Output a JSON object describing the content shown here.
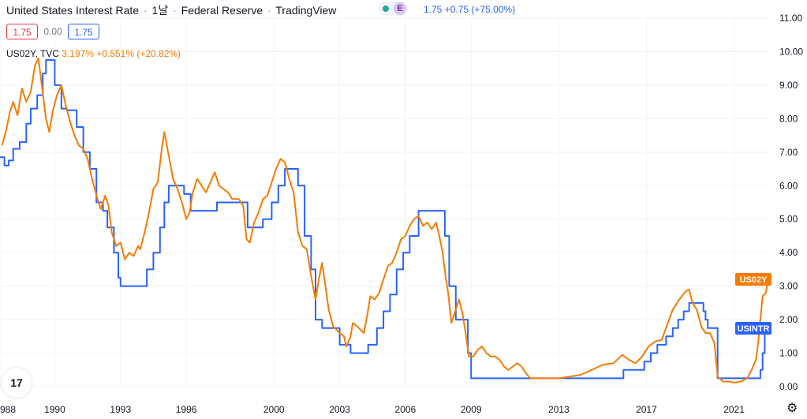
{
  "header": {
    "title": "United States Interest Rate",
    "interval": "1날",
    "source": "Federal Reserve",
    "platform": "TradingView",
    "badge": "E",
    "value_line": "1.75  +0.75 (+75.00%)"
  },
  "ohlc": {
    "open": "1.75",
    "mid": "0.00",
    "close": "1.75"
  },
  "overlay": {
    "name": "US02Y, TVC",
    "values": "3.197%  +0.551% (+20.82%)"
  },
  "logo": "17",
  "colors": {
    "rate": "#2962ff",
    "yield": "#f57c00",
    "grid": "#f0f3fa",
    "axis_text": "#131722"
  },
  "chart_data": {
    "type": "line",
    "y_ticks": [
      "11.00",
      "10.00",
      "9.00",
      "8.00",
      "7.00",
      "6.00",
      "5.00",
      "4.00",
      "3.00",
      "2.00",
      "1.00",
      "0.00"
    ],
    "x_ticks": [
      "988",
      "1990",
      "1993",
      "1996",
      "2000",
      "2003",
      "2006",
      "2009",
      "2013",
      "2017",
      "2021"
    ],
    "x_tick_years": [
      1987.5,
      1990,
      1993,
      1996,
      2000,
      2003,
      2006,
      2009,
      2013,
      2017,
      2021
    ],
    "xlim": [
      1987.5,
      2022.6
    ],
    "ylim": [
      0,
      11
    ],
    "series": [
      {
        "name": "USINTR",
        "label": "USINTR",
        "color": "#2962ff",
        "points": [
          [
            1987.5,
            6.85
          ],
          [
            1987.7,
            6.6
          ],
          [
            1987.9,
            6.75
          ],
          [
            1988.1,
            7.1
          ],
          [
            1988.4,
            7.3
          ],
          [
            1988.7,
            7.85
          ],
          [
            1988.9,
            8.3
          ],
          [
            1989.2,
            8.7
          ],
          [
            1989.45,
            9.35
          ],
          [
            1989.6,
            9.75
          ],
          [
            1989.8,
            9.75
          ],
          [
            1990.0,
            9.0
          ],
          [
            1990.3,
            8.3
          ],
          [
            1990.55,
            8.25
          ],
          [
            1990.85,
            8.25
          ],
          [
            1991.0,
            7.75
          ],
          [
            1991.3,
            7.0
          ],
          [
            1991.6,
            6.5
          ],
          [
            1991.9,
            5.5
          ],
          [
            1992.2,
            5.25
          ],
          [
            1992.4,
            4.75
          ],
          [
            1992.7,
            4.0
          ],
          [
            1992.9,
            3.25
          ],
          [
            1993.0,
            3.0
          ],
          [
            1993.5,
            3.0
          ],
          [
            1994.0,
            3.0
          ],
          [
            1994.2,
            3.5
          ],
          [
            1994.5,
            4.0
          ],
          [
            1994.8,
            4.75
          ],
          [
            1995.0,
            5.5
          ],
          [
            1995.2,
            6.0
          ],
          [
            1995.6,
            6.0
          ],
          [
            1995.9,
            5.75
          ],
          [
            1996.2,
            5.25
          ],
          [
            1996.8,
            5.25
          ],
          [
            1997.2,
            5.25
          ],
          [
            1997.4,
            5.5
          ],
          [
            1998.0,
            5.5
          ],
          [
            1998.6,
            5.5
          ],
          [
            1998.8,
            4.75
          ],
          [
            1999.2,
            4.75
          ],
          [
            1999.5,
            5.0
          ],
          [
            1999.9,
            5.5
          ],
          [
            2000.2,
            6.0
          ],
          [
            2000.5,
            6.5
          ],
          [
            2000.9,
            6.5
          ],
          [
            2001.1,
            6.0
          ],
          [
            2001.4,
            4.5
          ],
          [
            2001.7,
            3.5
          ],
          [
            2001.9,
            2.0
          ],
          [
            2002.2,
            1.75
          ],
          [
            2002.9,
            1.75
          ],
          [
            2003.0,
            1.25
          ],
          [
            2003.5,
            1.0
          ],
          [
            2004.0,
            1.0
          ],
          [
            2004.3,
            1.25
          ],
          [
            2004.7,
            1.75
          ],
          [
            2005.0,
            2.25
          ],
          [
            2005.3,
            2.75
          ],
          [
            2005.6,
            3.5
          ],
          [
            2005.9,
            4.0
          ],
          [
            2006.2,
            4.5
          ],
          [
            2006.6,
            5.25
          ],
          [
            2007.0,
            5.25
          ],
          [
            2007.6,
            5.25
          ],
          [
            2007.8,
            4.5
          ],
          [
            2008.0,
            3.0
          ],
          [
            2008.3,
            2.0
          ],
          [
            2008.6,
            2.0
          ],
          [
            2008.85,
            1.0
          ],
          [
            2009.0,
            0.25
          ],
          [
            2010.0,
            0.25
          ],
          [
            2012.0,
            0.25
          ],
          [
            2014.0,
            0.25
          ],
          [
            2015.5,
            0.25
          ],
          [
            2015.95,
            0.5
          ],
          [
            2016.9,
            0.75
          ],
          [
            2017.2,
            1.0
          ],
          [
            2017.5,
            1.25
          ],
          [
            2017.9,
            1.5
          ],
          [
            2018.2,
            1.75
          ],
          [
            2018.45,
            2.0
          ],
          [
            2018.7,
            2.25
          ],
          [
            2018.95,
            2.5
          ],
          [
            2019.5,
            2.5
          ],
          [
            2019.6,
            2.25
          ],
          [
            2019.7,
            2.0
          ],
          [
            2019.8,
            1.75
          ],
          [
            2020.2,
            1.75
          ],
          [
            2020.25,
            0.25
          ],
          [
            2021.0,
            0.25
          ],
          [
            2022.0,
            0.25
          ],
          [
            2022.2,
            0.5
          ],
          [
            2022.3,
            1.0
          ],
          [
            2022.4,
            1.75
          ]
        ]
      },
      {
        "name": "US02Y",
        "label": "US02Y",
        "color": "#f57c00",
        "points": [
          [
            1987.6,
            7.2
          ],
          [
            1987.8,
            7.7
          ],
          [
            1987.95,
            8.2
          ],
          [
            1988.1,
            8.5
          ],
          [
            1988.3,
            8.1
          ],
          [
            1988.5,
            8.9
          ],
          [
            1988.7,
            8.5
          ],
          [
            1988.9,
            8.8
          ],
          [
            1989.1,
            9.6
          ],
          [
            1989.25,
            9.8
          ],
          [
            1989.35,
            9.3
          ],
          [
            1989.5,
            8.5
          ],
          [
            1989.6,
            8.0
          ],
          [
            1989.75,
            7.6
          ],
          [
            1989.9,
            8.2
          ],
          [
            1990.1,
            8.7
          ],
          [
            1990.3,
            9.0
          ],
          [
            1990.5,
            8.4
          ],
          [
            1990.7,
            7.9
          ],
          [
            1990.9,
            7.5
          ],
          [
            1991.1,
            7.2
          ],
          [
            1991.3,
            7.1
          ],
          [
            1991.5,
            6.8
          ],
          [
            1991.7,
            6.2
          ],
          [
            1991.95,
            5.6
          ],
          [
            1992.1,
            5.3
          ],
          [
            1992.3,
            5.7
          ],
          [
            1992.45,
            5.4
          ],
          [
            1992.6,
            4.6
          ],
          [
            1992.8,
            4.2
          ],
          [
            1993.0,
            4.3
          ],
          [
            1993.2,
            3.8
          ],
          [
            1993.4,
            4.0
          ],
          [
            1993.6,
            3.9
          ],
          [
            1993.8,
            4.2
          ],
          [
            1993.9,
            4.1
          ],
          [
            1994.1,
            4.6
          ],
          [
            1994.3,
            5.2
          ],
          [
            1994.5,
            5.9
          ],
          [
            1994.7,
            6.1
          ],
          [
            1994.9,
            7.2
          ],
          [
            1995.0,
            7.6
          ],
          [
            1995.2,
            6.9
          ],
          [
            1995.4,
            6.2
          ],
          [
            1995.6,
            5.9
          ],
          [
            1995.8,
            5.5
          ],
          [
            1996.0,
            5.0
          ],
          [
            1996.15,
            5.2
          ],
          [
            1996.3,
            5.8
          ],
          [
            1996.5,
            6.2
          ],
          [
            1996.7,
            6.0
          ],
          [
            1996.9,
            5.8
          ],
          [
            1997.1,
            6.1
          ],
          [
            1997.3,
            6.4
          ],
          [
            1997.5,
            6.0
          ],
          [
            1997.7,
            5.9
          ],
          [
            1997.9,
            5.8
          ],
          [
            1998.1,
            5.6
          ],
          [
            1998.4,
            5.6
          ],
          [
            1998.6,
            5.4
          ],
          [
            1998.75,
            4.4
          ],
          [
            1998.9,
            4.3
          ],
          [
            1999.1,
            4.9
          ],
          [
            1999.3,
            5.2
          ],
          [
            1999.5,
            5.6
          ],
          [
            1999.7,
            5.7
          ],
          [
            1999.9,
            6.1
          ],
          [
            2000.1,
            6.5
          ],
          [
            2000.3,
            6.8
          ],
          [
            2000.5,
            6.7
          ],
          [
            2000.7,
            6.2
          ],
          [
            2000.9,
            5.8
          ],
          [
            2001.1,
            4.6
          ],
          [
            2001.3,
            4.2
          ],
          [
            2001.5,
            4.1
          ],
          [
            2001.7,
            3.3
          ],
          [
            2001.9,
            2.6
          ],
          [
            2002.05,
            3.2
          ],
          [
            2002.2,
            3.7
          ],
          [
            2002.35,
            3.0
          ],
          [
            2002.5,
            2.3
          ],
          [
            2002.7,
            1.8
          ],
          [
            2002.85,
            1.7
          ],
          [
            2003.0,
            1.6
          ],
          [
            2003.2,
            1.5
          ],
          [
            2003.3,
            1.2
          ],
          [
            2003.5,
            1.5
          ],
          [
            2003.6,
            1.9
          ],
          [
            2003.8,
            1.8
          ],
          [
            2003.95,
            1.7
          ],
          [
            2004.1,
            1.6
          ],
          [
            2004.25,
            2.1
          ],
          [
            2004.4,
            2.7
          ],
          [
            2004.6,
            2.6
          ],
          [
            2004.8,
            2.8
          ],
          [
            2005.0,
            3.2
          ],
          [
            2005.2,
            3.6
          ],
          [
            2005.4,
            3.7
          ],
          [
            2005.6,
            4.0
          ],
          [
            2005.8,
            4.4
          ],
          [
            2006.0,
            4.5
          ],
          [
            2006.2,
            4.8
          ],
          [
            2006.4,
            5.0
          ],
          [
            2006.6,
            5.1
          ],
          [
            2006.8,
            4.8
          ],
          [
            2007.0,
            4.9
          ],
          [
            2007.2,
            4.7
          ],
          [
            2007.4,
            4.9
          ],
          [
            2007.55,
            4.5
          ],
          [
            2007.7,
            4.0
          ],
          [
            2007.85,
            3.2
          ],
          [
            2007.95,
            2.8
          ],
          [
            2008.1,
            1.9
          ],
          [
            2008.3,
            2.3
          ],
          [
            2008.45,
            2.6
          ],
          [
            2008.6,
            2.2
          ],
          [
            2008.75,
            1.6
          ],
          [
            2008.9,
            0.9
          ],
          [
            2009.1,
            0.9
          ],
          [
            2009.3,
            1.1
          ],
          [
            2009.5,
            1.2
          ],
          [
            2009.7,
            1.0
          ],
          [
            2009.9,
            0.9
          ],
          [
            2010.1,
            0.9
          ],
          [
            2010.3,
            0.8
          ],
          [
            2010.5,
            0.6
          ],
          [
            2010.7,
            0.5
          ],
          [
            2010.9,
            0.6
          ],
          [
            2011.1,
            0.7
          ],
          [
            2011.3,
            0.6
          ],
          [
            2011.5,
            0.4
          ],
          [
            2011.7,
            0.25
          ],
          [
            2012.0,
            0.25
          ],
          [
            2012.5,
            0.25
          ],
          [
            2013.0,
            0.25
          ],
          [
            2013.5,
            0.3
          ],
          [
            2014.0,
            0.35
          ],
          [
            2014.5,
            0.5
          ],
          [
            2015.0,
            0.65
          ],
          [
            2015.5,
            0.7
          ],
          [
            2015.9,
            0.95
          ],
          [
            2016.2,
            0.8
          ],
          [
            2016.5,
            0.7
          ],
          [
            2016.8,
            0.9
          ],
          [
            2017.1,
            1.2
          ],
          [
            2017.4,
            1.35
          ],
          [
            2017.7,
            1.4
          ],
          [
            2017.95,
            1.85
          ],
          [
            2018.2,
            2.3
          ],
          [
            2018.5,
            2.6
          ],
          [
            2018.8,
            2.85
          ],
          [
            2018.95,
            2.9
          ],
          [
            2019.1,
            2.5
          ],
          [
            2019.3,
            2.3
          ],
          [
            2019.5,
            1.8
          ],
          [
            2019.7,
            1.6
          ],
          [
            2019.9,
            1.6
          ],
          [
            2020.1,
            1.3
          ],
          [
            2020.25,
            0.3
          ],
          [
            2020.5,
            0.15
          ],
          [
            2020.8,
            0.15
          ],
          [
            2021.0,
            0.12
          ],
          [
            2021.3,
            0.15
          ],
          [
            2021.6,
            0.25
          ],
          [
            2021.8,
            0.5
          ],
          [
            2022.0,
            0.8
          ],
          [
            2022.1,
            1.3
          ],
          [
            2022.2,
            2.0
          ],
          [
            2022.3,
            2.7
          ],
          [
            2022.45,
            2.8
          ],
          [
            2022.55,
            3.2
          ]
        ]
      }
    ]
  }
}
